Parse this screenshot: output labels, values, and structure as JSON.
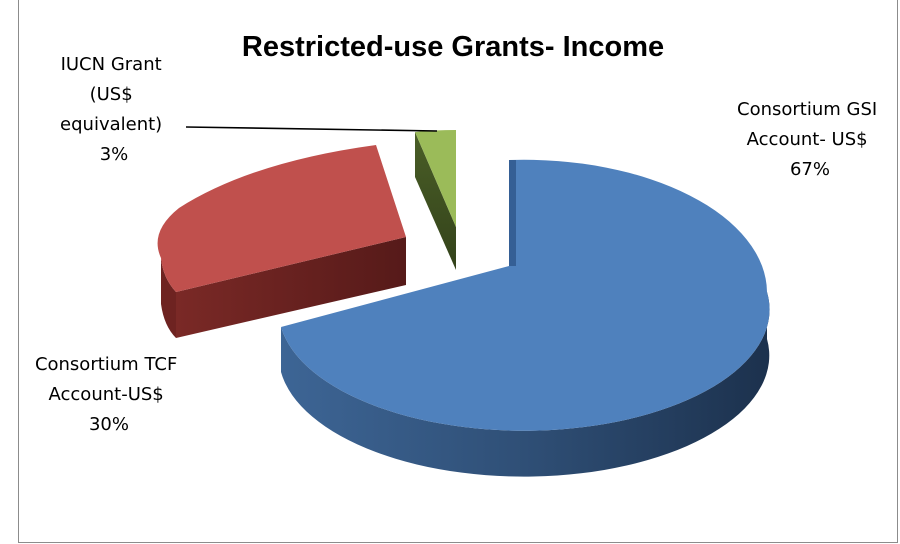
{
  "chart_data": {
    "type": "pie",
    "style": "3d-exploded",
    "title": "Restricted-use Grants- Income",
    "slices": [
      {
        "label_lines": [
          "Consortium GSI",
          "Account- US$"
        ],
        "percent_text": "67%",
        "value": 67,
        "color": "#4f81bd"
      },
      {
        "label_lines": [
          "Consortium TCF",
          "Account-US$"
        ],
        "percent_text": "30%",
        "value": 30,
        "color": "#c0504d"
      },
      {
        "label_lines": [
          "IUCN Grant",
          "(US$",
          "equivalent)"
        ],
        "percent_text": "3%",
        "value": 3,
        "color": "#9bbb59"
      }
    ],
    "legend": "none"
  }
}
